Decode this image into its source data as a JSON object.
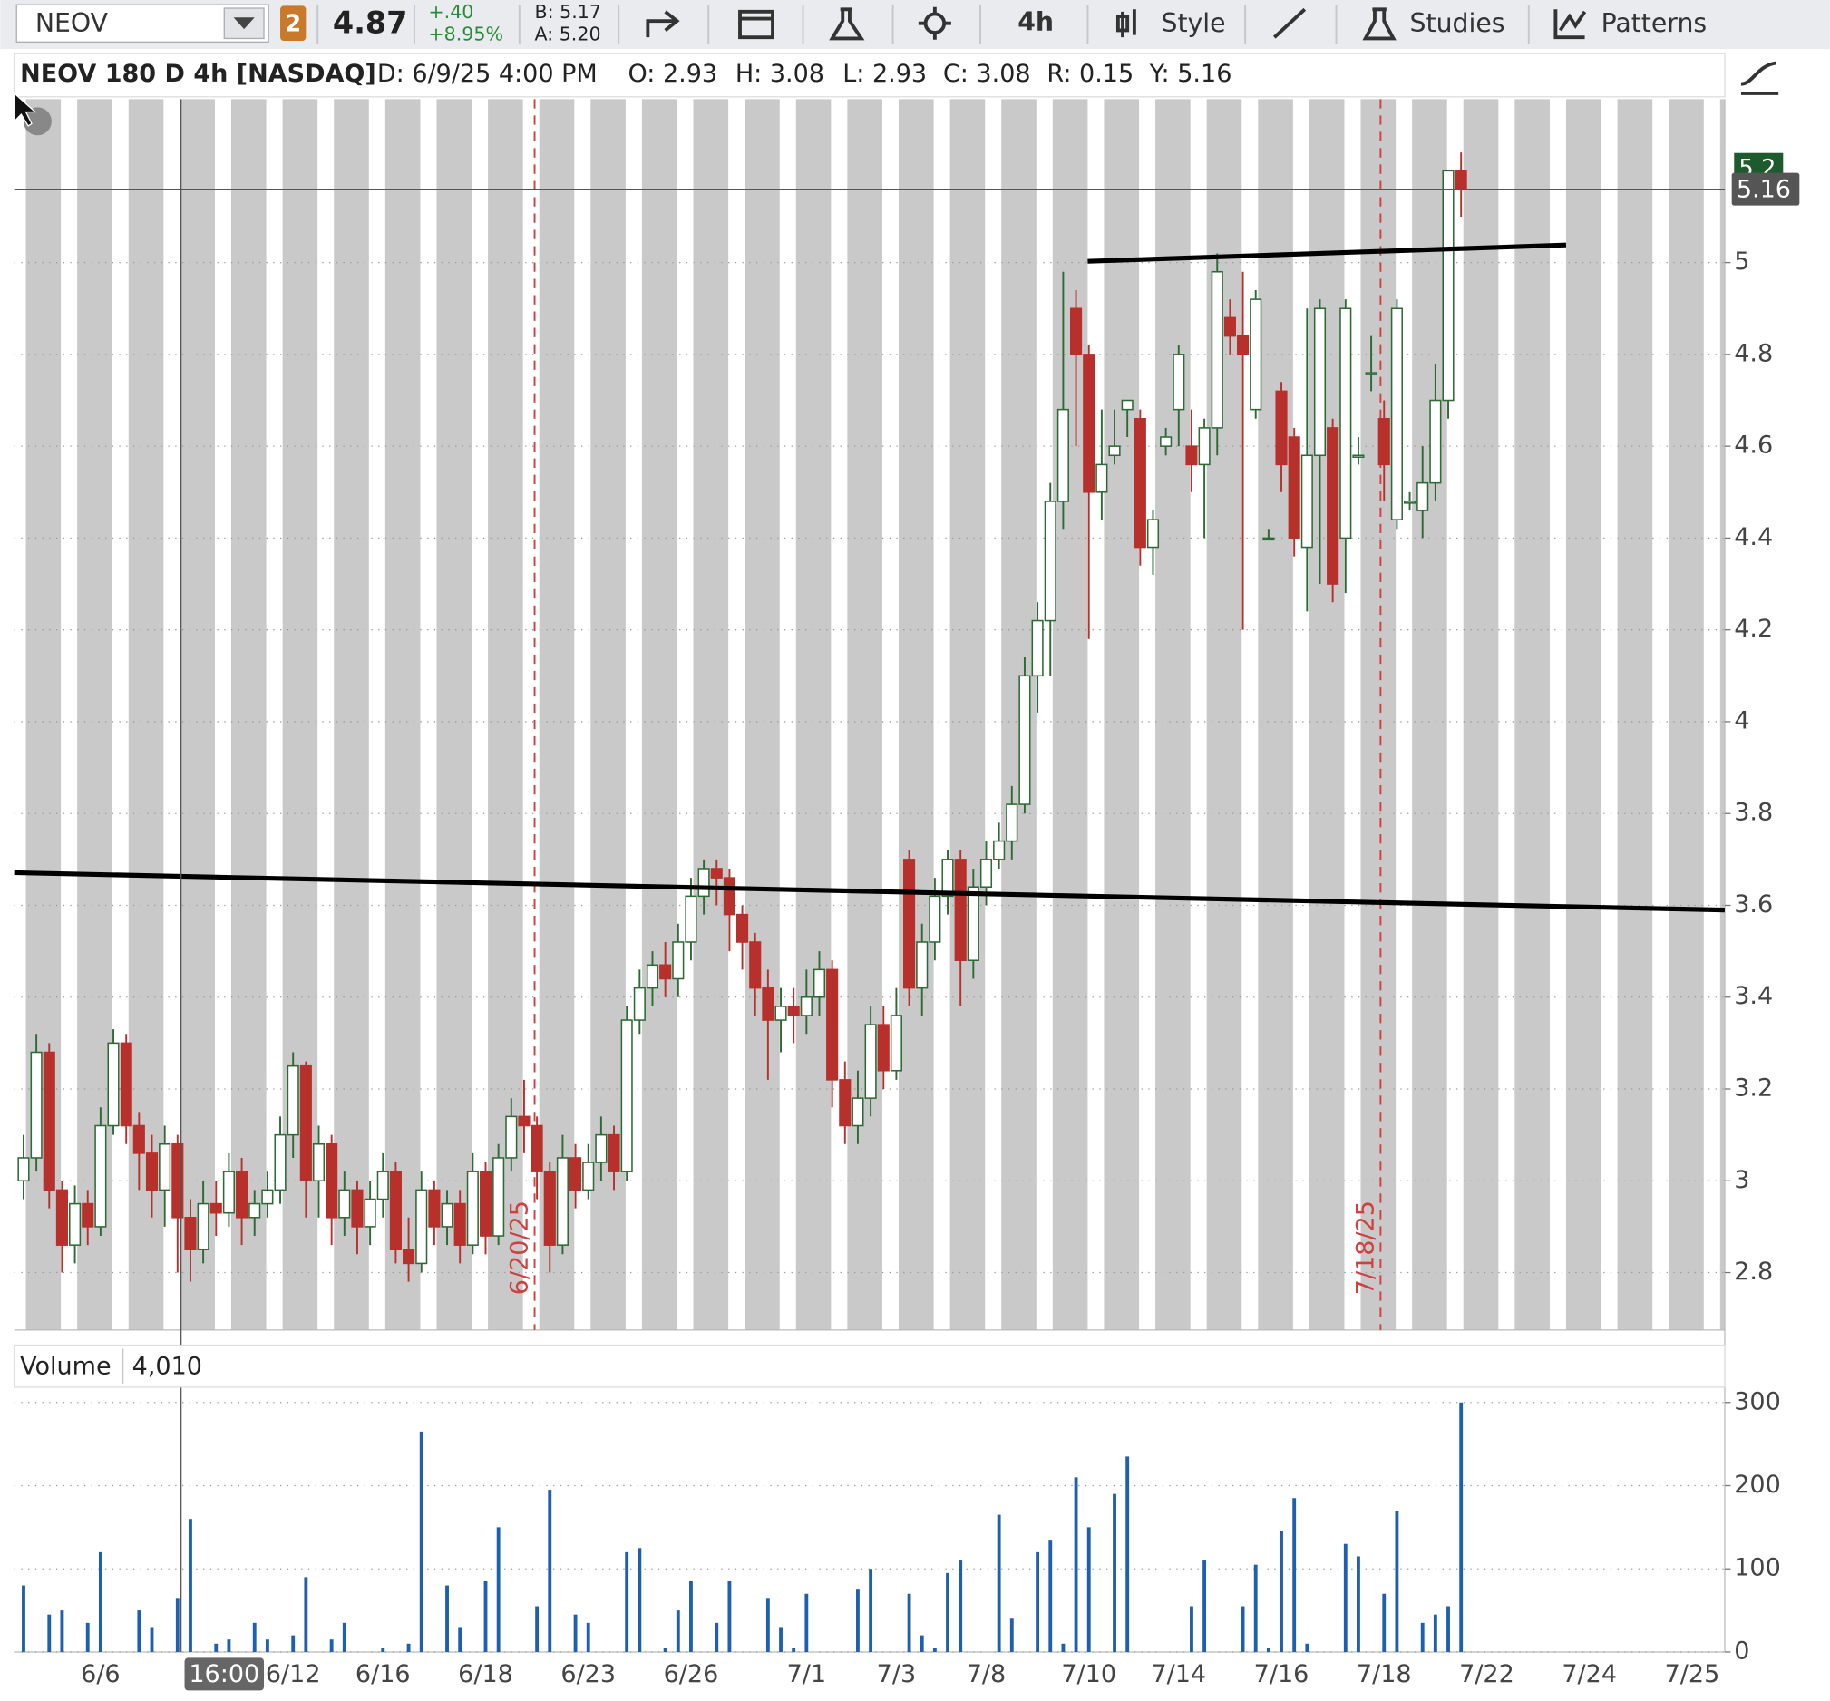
{
  "toolbar": {
    "symbol": "NEOV",
    "link_badge": "2",
    "last": "4.87",
    "change": "+.40",
    "change_pct": "+8.95%",
    "bid": "B: 5.17",
    "ask": "A: 5.20",
    "timeframe": "4h",
    "style": "Style",
    "studies": "Studies",
    "patterns": "Patterns"
  },
  "header": {
    "title": "NEOV 180 D 4h [NASDAQ]",
    "date": "D: 6/9/25 4:00 PM",
    "open": "O: 2.93",
    "high": "H: 3.08",
    "low": "L: 2.93",
    "close": "C: 3.08",
    "range": "R: 0.15",
    "cursor": "Y: 5.16"
  },
  "crosshair_time": "16:00",
  "chart_data": [
    {
      "type": "candlestick",
      "up_color": "#2d6a36",
      "down_color": "#b8302c",
      "ylim": [
        2.675,
        5.356
      ],
      "yticks": [
        2.8,
        3,
        3.2,
        3.4,
        3.6,
        3.8,
        4,
        4.2,
        4.4,
        4.6,
        4.8,
        5
      ],
      "grid": true,
      "last_price_label": "5.16",
      "bid_label": "5.2",
      "annotations": [
        "6/20/25",
        "7/18/25"
      ],
      "open": [
        3.0,
        3.05,
        3.28,
        2.98,
        2.86,
        2.95,
        2.9,
        3.12,
        3.3,
        3.12,
        3.06,
        2.98,
        3.08,
        2.92,
        2.85,
        2.95,
        2.93,
        3.02,
        2.92,
        2.95,
        2.98,
        3.1,
        3.25,
        3.0,
        3.08,
        2.92,
        2.98,
        2.9,
        2.96,
        3.02,
        2.85,
        2.82,
        2.98,
        2.9,
        2.95,
        2.86,
        3.02,
        2.88,
        3.05,
        3.14,
        3.12,
        3.02,
        2.86,
        3.05,
        2.98,
        3.04,
        3.1,
        3.02,
        3.35,
        3.42,
        3.47,
        3.44,
        3.52,
        3.62,
        3.68,
        3.66,
        3.58,
        3.52,
        3.42,
        3.35,
        3.38,
        3.36,
        3.4,
        3.46,
        3.22,
        3.12,
        3.18,
        3.34,
        3.24,
        3.7,
        3.42,
        3.52,
        3.62,
        3.7,
        3.48,
        3.64,
        3.7,
        3.74,
        3.82,
        4.1,
        4.22,
        4.48,
        4.9,
        4.8,
        4.5,
        4.58,
        4.68,
        4.66,
        4.38,
        4.6,
        4.68,
        4.6,
        4.56,
        4.64,
        4.88,
        4.84,
        4.68,
        4.4,
        4.72,
        4.62,
        4.38,
        4.58,
        4.64,
        4.4,
        4.58,
        4.76,
        4.66,
        4.44,
        4.48,
        4.46,
        4.52,
        4.7,
        5.2,
        null,
        null,
        null,
        null,
        null,
        null,
        null,
        null,
        null,
        null,
        null,
        null,
        null,
        null,
        null,
        null,
        null,
        null
      ],
      "high": [
        3.1,
        3.32,
        3.3,
        3.0,
        2.99,
        2.98,
        3.16,
        3.33,
        3.32,
        3.15,
        3.1,
        3.12,
        3.1,
        2.96,
        3.0,
        3.0,
        3.06,
        3.05,
        2.98,
        3.02,
        3.14,
        3.28,
        3.26,
        3.12,
        3.1,
        3.02,
        3.0,
        3.0,
        3.06,
        3.04,
        2.92,
        3.02,
        3.0,
        2.98,
        2.98,
        3.06,
        3.04,
        3.08,
        3.18,
        3.22,
        3.14,
        3.04,
        3.1,
        3.08,
        3.08,
        3.14,
        3.12,
        3.38,
        3.46,
        3.5,
        3.52,
        3.56,
        3.66,
        3.7,
        3.7,
        3.68,
        3.6,
        3.54,
        3.46,
        3.42,
        3.42,
        3.46,
        3.5,
        3.48,
        3.26,
        3.24,
        3.38,
        3.38,
        3.42,
        3.72,
        3.56,
        3.66,
        3.72,
        3.72,
        3.68,
        3.74,
        3.78,
        3.86,
        4.14,
        4.26,
        4.52,
        4.98,
        4.94,
        4.82,
        4.68,
        4.68,
        4.7,
        4.68,
        4.46,
        4.64,
        4.82,
        4.68,
        4.66,
        5.02,
        4.92,
        4.98,
        4.94,
        4.42,
        4.74,
        4.64,
        4.9,
        4.92,
        4.66,
        4.92,
        4.62,
        4.84,
        4.7,
        4.92,
        4.5,
        4.6,
        4.78,
        5.2,
        5.24,
        null,
        null,
        null,
        null,
        null,
        null,
        null,
        null,
        null,
        null,
        null,
        null,
        null,
        null,
        null,
        null,
        null,
        null
      ],
      "low": [
        2.96,
        3.02,
        2.94,
        2.8,
        2.82,
        2.86,
        2.88,
        3.1,
        3.08,
        2.98,
        2.92,
        2.9,
        2.8,
        2.78,
        2.82,
        2.88,
        2.9,
        2.86,
        2.88,
        2.92,
        2.95,
        3.05,
        2.92,
        2.92,
        2.86,
        2.88,
        2.84,
        2.86,
        2.92,
        2.82,
        2.78,
        2.8,
        2.86,
        2.86,
        2.82,
        2.84,
        2.84,
        2.86,
        3.02,
        3.06,
        2.96,
        2.8,
        2.84,
        2.94,
        2.96,
        3.0,
        2.98,
        3.0,
        3.32,
        3.38,
        3.4,
        3.4,
        3.48,
        3.58,
        3.6,
        3.5,
        3.46,
        3.36,
        3.22,
        3.28,
        3.3,
        3.32,
        3.36,
        3.16,
        3.08,
        3.08,
        3.14,
        3.2,
        3.22,
        3.38,
        3.36,
        3.48,
        3.58,
        3.38,
        3.44,
        3.6,
        3.68,
        3.7,
        3.8,
        4.02,
        4.1,
        4.42,
        4.6,
        4.18,
        4.44,
        4.56,
        4.62,
        4.34,
        4.32,
        4.58,
        4.6,
        4.5,
        4.4,
        4.58,
        4.8,
        4.2,
        4.66,
        4.4,
        4.5,
        4.36,
        4.24,
        4.3,
        4.26,
        4.28,
        4.56,
        4.72,
        4.48,
        4.42,
        4.46,
        4.4,
        4.48,
        4.66,
        5.1,
        null,
        null,
        null,
        null,
        null,
        null,
        null,
        null,
        null,
        null,
        null,
        null,
        null,
        null,
        null,
        null,
        null,
        null
      ],
      "close": [
        3.05,
        3.28,
        2.98,
        2.86,
        2.95,
        2.9,
        3.12,
        3.3,
        3.12,
        3.06,
        2.98,
        3.08,
        2.92,
        2.85,
        2.95,
        2.93,
        3.02,
        2.92,
        2.95,
        2.98,
        3.1,
        3.25,
        3.0,
        3.08,
        2.92,
        2.98,
        2.9,
        2.96,
        3.02,
        2.85,
        2.82,
        2.98,
        2.9,
        2.95,
        2.86,
        3.02,
        2.88,
        3.05,
        3.14,
        3.12,
        3.02,
        2.86,
        3.05,
        2.98,
        3.04,
        3.1,
        3.02,
        3.35,
        3.42,
        3.47,
        3.44,
        3.52,
        3.62,
        3.68,
        3.66,
        3.58,
        3.52,
        3.42,
        3.35,
        3.38,
        3.36,
        3.4,
        3.46,
        3.22,
        3.12,
        3.18,
        3.34,
        3.24,
        3.36,
        3.42,
        3.52,
        3.62,
        3.7,
        3.48,
        3.64,
        3.7,
        3.74,
        3.82,
        4.1,
        4.22,
        4.48,
        4.68,
        4.8,
        4.5,
        4.56,
        4.6,
        4.7,
        4.38,
        4.44,
        4.62,
        4.8,
        4.56,
        4.64,
        4.98,
        4.84,
        4.8,
        4.92,
        4.4,
        4.56,
        4.4,
        4.58,
        4.9,
        4.3,
        4.9,
        4.58,
        4.76,
        4.56,
        4.9,
        4.48,
        4.52,
        4.7,
        5.2,
        5.16,
        null,
        null,
        null,
        null,
        null,
        null,
        null,
        null,
        null,
        null,
        null,
        null,
        null,
        null,
        null,
        null,
        null,
        null
      ]
    },
    {
      "type": "bar",
      "title": "Volume",
      "value_label": "4,010",
      "color": "#1f5fb0",
      "ylim": [
        0,
        310
      ],
      "yticks": [
        0,
        100,
        200,
        300
      ],
      "grid": true,
      "categories": [
        null,
        null,
        null,
        null,
        null,
        null,
        "6/6",
        null,
        null,
        null,
        null,
        null,
        null,
        null,
        null,
        null,
        null,
        null,
        null,
        null,
        null,
        "6/12",
        null,
        null,
        null,
        null,
        null,
        null,
        "6/16",
        null,
        null,
        null,
        null,
        null,
        null,
        null,
        "6/18",
        null,
        null,
        null,
        null,
        null,
        null,
        null,
        "6/23",
        null,
        null,
        null,
        null,
        null,
        null,
        null,
        "6/26",
        null,
        null,
        null,
        null,
        null,
        null,
        null,
        null,
        "7/1",
        null,
        null,
        null,
        null,
        null,
        null,
        "7/3",
        null,
        null,
        null,
        null,
        null,
        null,
        "7/8",
        null,
        null,
        null,
        null,
        null,
        null,
        null,
        "7/10",
        null,
        null,
        null,
        null,
        null,
        null,
        "7/14",
        null,
        null,
        null,
        null,
        null,
        null,
        null,
        "7/16",
        null,
        null,
        null,
        null,
        null,
        null,
        null,
        "7/18",
        null,
        null,
        null,
        null,
        null,
        null,
        null,
        "7/22",
        null,
        null,
        null,
        null,
        null,
        null,
        null,
        "7/24",
        null,
        null,
        null,
        null,
        null,
        null,
        null,
        "7/25"
      ],
      "values": [
        80,
        0,
        45,
        50,
        0,
        35,
        120,
        0,
        0,
        50,
        30,
        0,
        65,
        160,
        0,
        10,
        15,
        0,
        35,
        15,
        0,
        20,
        90,
        0,
        15,
        35,
        0,
        0,
        5,
        0,
        10,
        265,
        0,
        80,
        30,
        0,
        85,
        150,
        0,
        0,
        55,
        195,
        0,
        45,
        35,
        0,
        0,
        120,
        125,
        0,
        5,
        50,
        85,
        0,
        35,
        85,
        0,
        0,
        65,
        30,
        5,
        70,
        0,
        0,
        0,
        75,
        100,
        0,
        0,
        70,
        20,
        5,
        95,
        110,
        0,
        0,
        165,
        40,
        0,
        120,
        135,
        10,
        210,
        150,
        0,
        190,
        235,
        0,
        0,
        0,
        0,
        55,
        110,
        0,
        0,
        55,
        105,
        5,
        145,
        185,
        10,
        0,
        0,
        130,
        115,
        0,
        70,
        170,
        0,
        35,
        45,
        55,
        300,
        null,
        null,
        null,
        null,
        null,
        null,
        null,
        null,
        null,
        null,
        null,
        null,
        null,
        null,
        null,
        null,
        null,
        null
      ]
    }
  ]
}
